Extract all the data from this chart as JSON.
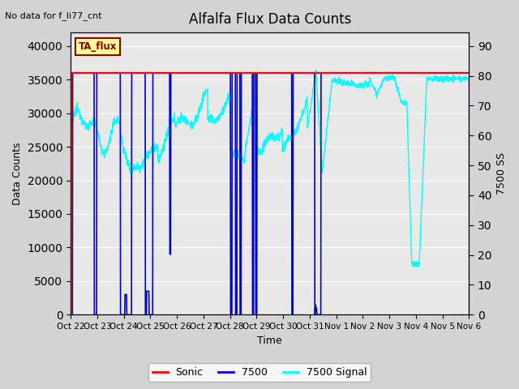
{
  "title": "Alfalfa Flux Data Counts",
  "subtitle": "No data for f_li77_cnt",
  "xlabel": "Time",
  "ylabel_left": "Data Counts",
  "ylabel_right": "7500 SS",
  "legend_label_box": "TA_flux",
  "ylim_left": [
    0,
    42000
  ],
  "ylim_right": [
    0,
    94.5
  ],
  "yticks_left": [
    0,
    5000,
    10000,
    15000,
    20000,
    25000,
    30000,
    35000,
    40000
  ],
  "yticks_right": [
    0,
    10,
    20,
    30,
    40,
    50,
    60,
    70,
    80,
    90
  ],
  "bg_color": "#d3d3d3",
  "plot_bg_color": "#e8e8e8",
  "grid_color": "white",
  "sonic_color": "#ff0000",
  "blue7500_color": "#0000cc",
  "cyan_color": "#00ffff",
  "x_tick_labels": [
    "Oct 22",
    "Oct 23",
    "Oct 24",
    "Oct 25",
    "Oct 26",
    "Oct 27",
    "Oct 28",
    "Oct 29",
    "Oct 30",
    "Oct 31",
    "Nov 1",
    "Nov 2",
    "Nov 3",
    "Nov 4",
    "Nov 5",
    "Nov 6"
  ],
  "sonic_level": 36000,
  "blue_level": 36000,
  "figsize": [
    6.4,
    4.8
  ],
  "dpi": 100
}
